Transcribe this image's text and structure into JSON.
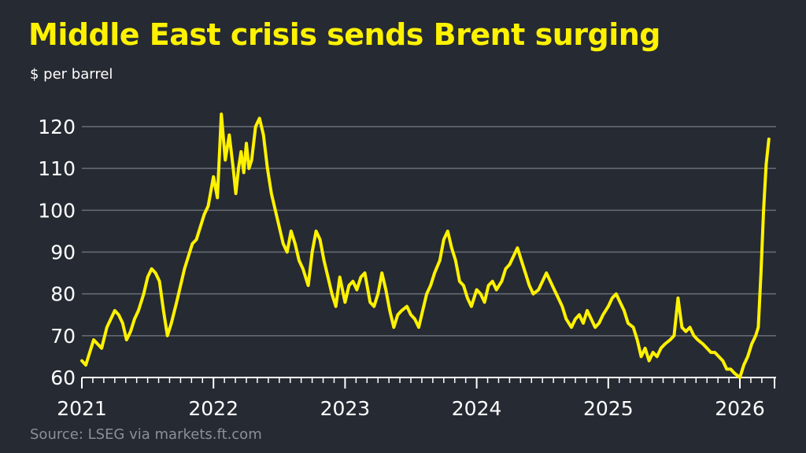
{
  "colors": {
    "background": "#262a33",
    "line": "#fff200",
    "grid": "#6a6e76",
    "text": "#ffffff",
    "source": "#8b8f97"
  },
  "chart_data": {
    "type": "line",
    "title": "Middle East crisis sends Brent surging",
    "subtitle": "$ per barrel",
    "source": "Source: LSEG via markets.ft.com",
    "xlabel": "",
    "ylabel": "",
    "ylim": [
      60,
      122
    ],
    "xlim": [
      2021.0,
      2026.22
    ],
    "yticks": [
      60,
      70,
      80,
      90,
      100,
      110,
      120
    ],
    "xtick_labels": [
      "2021",
      "2022",
      "2023",
      "2024",
      "2025",
      "2026"
    ],
    "grid": "horizontal",
    "series": [
      {
        "x": [
          2021.0,
          2021.03,
          2021.06,
          2021.09,
          2021.12,
          2021.15,
          2021.19,
          2021.22,
          2021.25,
          2021.28,
          2021.31,
          2021.34,
          2021.37,
          2021.4,
          2021.43,
          2021.47,
          2021.5,
          2021.53,
          2021.56,
          2021.59,
          2021.62,
          2021.65,
          2021.68,
          2021.72,
          2021.75,
          2021.78,
          2021.81,
          2021.84,
          2021.87,
          2021.9,
          2021.93,
          2021.96,
          2022.0,
          2022.03,
          2022.06,
          2022.09,
          2022.12,
          2022.15,
          2022.17,
          2022.19,
          2022.21,
          2022.23,
          2022.25,
          2022.27,
          2022.29,
          2022.32,
          2022.35,
          2022.38,
          2022.41,
          2022.44,
          2022.47,
          2022.5,
          2022.53,
          2022.56,
          2022.59,
          2022.62,
          2022.65,
          2022.68,
          2022.72,
          2022.75,
          2022.78,
          2022.81,
          2022.84,
          2022.87,
          2022.9,
          2022.93,
          2022.96,
          2023.0,
          2023.03,
          2023.06,
          2023.09,
          2023.12,
          2023.15,
          2023.19,
          2023.22,
          2023.25,
          2023.28,
          2023.31,
          2023.34,
          2023.37,
          2023.4,
          2023.43,
          2023.47,
          2023.5,
          2023.53,
          2023.56,
          2023.59,
          2023.62,
          2023.65,
          2023.68,
          2023.72,
          2023.75,
          2023.78,
          2023.81,
          2023.84,
          2023.87,
          2023.9,
          2023.93,
          2023.96,
          2024.0,
          2024.03,
          2024.06,
          2024.09,
          2024.12,
          2024.15,
          2024.19,
          2024.22,
          2024.25,
          2024.28,
          2024.31,
          2024.34,
          2024.37,
          2024.4,
          2024.43,
          2024.47,
          2024.5,
          2024.53,
          2024.56,
          2024.59,
          2024.62,
          2024.65,
          2024.68,
          2024.72,
          2024.75,
          2024.78,
          2024.81,
          2024.84,
          2024.87,
          2024.9,
          2024.93,
          2024.96,
          2025.0,
          2025.03,
          2025.06,
          2025.09,
          2025.12,
          2025.15,
          2025.19,
          2025.22,
          2025.25,
          2025.28,
          2025.31,
          2025.34,
          2025.37,
          2025.4,
          2025.43,
          2025.47,
          2025.5,
          2025.53,
          2025.56,
          2025.59,
          2025.62,
          2025.65,
          2025.68,
          2025.72,
          2025.75,
          2025.78,
          2025.81,
          2025.84,
          2025.87,
          2025.9,
          2025.93,
          2025.96,
          2026.0,
          2026.03,
          2026.06,
          2026.09,
          2026.12,
          2026.14,
          2026.16,
          2026.18,
          2026.2,
          2026.22
        ],
        "values": [
          64,
          63,
          66,
          69,
          68,
          67,
          72,
          74,
          76,
          75,
          73,
          69,
          71,
          74,
          76,
          80,
          84,
          86,
          85,
          83,
          76,
          70,
          73,
          78,
          82,
          86,
          89,
          92,
          93,
          96,
          99,
          101,
          108,
          103,
          123,
          112,
          118,
          110,
          104,
          110,
          114,
          109,
          116,
          110,
          112,
          120,
          122,
          118,
          110,
          104,
          100,
          96,
          92,
          90,
          95,
          92,
          88,
          86,
          82,
          90,
          95,
          93,
          88,
          84,
          80,
          77,
          84,
          78,
          82,
          83,
          81,
          84,
          85,
          78,
          77,
          80,
          85,
          81,
          76,
          72,
          75,
          76,
          77,
          75,
          74,
          72,
          76,
          80,
          82,
          85,
          88,
          93,
          95,
          91,
          88,
          83,
          82,
          79,
          77,
          81,
          80,
          78,
          82,
          83,
          81,
          83,
          86,
          87,
          89,
          91,
          88,
          85,
          82,
          80,
          81,
          83,
          85,
          83,
          81,
          79,
          77,
          74,
          72,
          74,
          75,
          73,
          76,
          74,
          72,
          73,
          75,
          77,
          79,
          80,
          78,
          76,
          73,
          72,
          69,
          65,
          67,
          64,
          66,
          65,
          67,
          68,
          69,
          70,
          79,
          72,
          71,
          72,
          70,
          69,
          68,
          67,
          66,
          66,
          65,
          64,
          62,
          62,
          61,
          60,
          63,
          65,
          68,
          70,
          72,
          85,
          100,
          111,
          117
        ]
      }
    ]
  }
}
